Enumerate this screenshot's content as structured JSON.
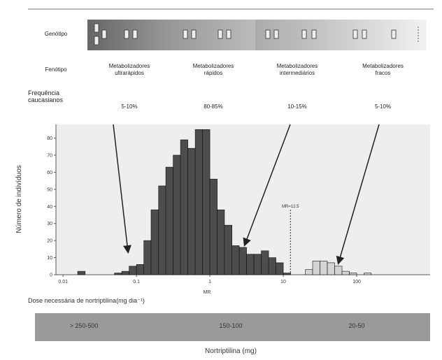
{
  "header": {
    "genotype_label": "Genótipo",
    "phenotype_label": "Fenótipo",
    "frequency_label": "Frequência caucasianos",
    "phenotypes": [
      "Metabolizadores ultrarápidos",
      "Metabolizadores rápidos",
      "Metabolizadores intermediários",
      "Metabolizadores fracos"
    ],
    "frequencies": [
      "5-10%",
      "80-85%",
      "10-15%",
      "5-10%"
    ]
  },
  "chart_data": {
    "type": "histogram",
    "xlabel": "MR",
    "ylabel": "Número de indivíduos",
    "log_x": true,
    "bins": [
      0.01,
      0.0126,
      0.0158,
      0.02,
      0.0251,
      0.0316,
      0.0398,
      0.0501,
      0.0631,
      0.0794,
      0.1,
      0.126,
      0.158,
      0.2,
      0.251,
      0.316,
      0.398,
      0.501,
      0.631,
      0.794,
      1,
      1.26,
      1.58,
      2,
      2.51,
      3.16,
      3.98,
      5.01,
      6.31,
      7.94,
      10,
      12.6,
      15.8,
      20,
      25.1,
      31.6,
      39.8,
      50.1,
      63.1,
      79.4,
      100,
      126,
      158,
      200,
      251,
      316,
      398,
      501
    ],
    "values": [
      0,
      0,
      2,
      0,
      0,
      0,
      0,
      1,
      2,
      5,
      6,
      20,
      38,
      52,
      63,
      70,
      79,
      74,
      85,
      85,
      56,
      38,
      29,
      17,
      16,
      12,
      12,
      14,
      10,
      7,
      1,
      0,
      0,
      3,
      8,
      8,
      7,
      5,
      2,
      1,
      0,
      1,
      0,
      0,
      0,
      0,
      0
    ],
    "color": "#4d4d4d",
    "color_above_threshold": "#d4d4d4",
    "xlim": [
      0.008,
      1000
    ],
    "xticks": [
      0.01,
      0.1,
      1,
      10,
      100
    ],
    "ylim": [
      0,
      88
    ],
    "yticks": [
      0,
      10,
      20,
      30,
      40,
      50,
      60,
      70,
      80
    ],
    "annotation": {
      "text": "MR=12.5",
      "x": 12.5
    }
  },
  "dose": {
    "label": "Dose necessária de nortriptilina(mg dia⁻¹)",
    "ranges": [
      "> 250-500",
      "150-100",
      "20-50"
    ],
    "footer": "Nortriptilina (mg)"
  }
}
